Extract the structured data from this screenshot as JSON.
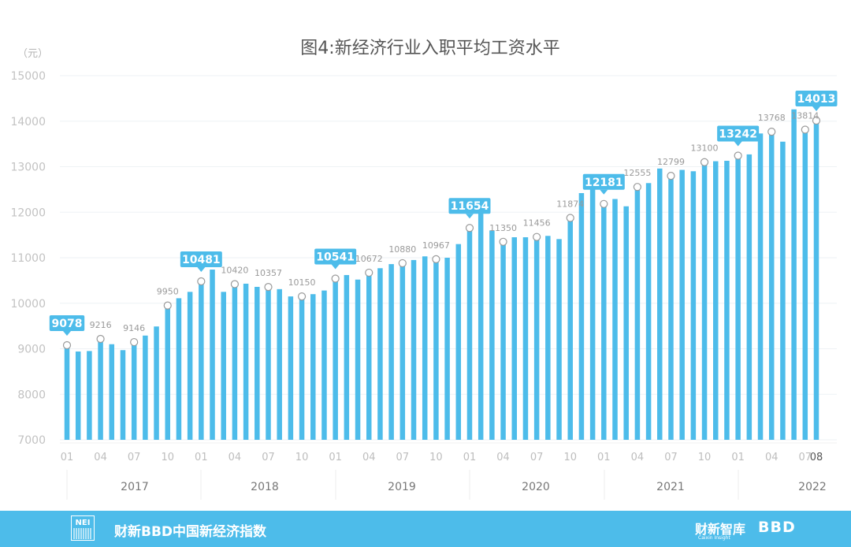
{
  "chart_data": {
    "type": "bar",
    "title": "图4:新经济行业入职平均工资水平",
    "unit_label": "（元）",
    "ylim": [
      7000,
      15000
    ],
    "yticks": [
      7000,
      8000,
      9000,
      10000,
      11000,
      12000,
      13000,
      14000,
      15000
    ],
    "grid": true,
    "bar_color": "#4DBCEA",
    "x_tick_labels": [
      "01",
      "04",
      "07",
      "10",
      "01",
      "04",
      "07",
      "10",
      "01",
      "04",
      "07",
      "10",
      "01",
      "04",
      "07",
      "10",
      "01",
      "04",
      "07",
      "10",
      "01",
      "04",
      "07",
      "08"
    ],
    "years": [
      "2017",
      "2018",
      "2019",
      "2020",
      "2021",
      "2022"
    ],
    "values": [
      9078,
      8940,
      8950,
      9216,
      9100,
      8970,
      9146,
      9290,
      9490,
      9950,
      10110,
      10250,
      10481,
      10740,
      10250,
      10420,
      10430,
      10360,
      10357,
      10310,
      10150,
      10150,
      10200,
      10280,
      10541,
      10620,
      10520,
      10672,
      10770,
      10860,
      10880,
      10950,
      11030,
      10967,
      11000,
      11300,
      11654,
      12220,
      11600,
      11350,
      11450,
      11450,
      11456,
      11480,
      11410,
      11874,
      12420,
      12520,
      12181,
      12290,
      12130,
      12555,
      12640,
      12960,
      12799,
      12930,
      12900,
      13100,
      13120,
      13130,
      13242,
      13270,
      13730,
      13768,
      13550,
      14260,
      13814,
      14013
    ],
    "point_labels": [
      {
        "i": 0,
        "value": "9078",
        "highlight": true
      },
      {
        "i": 3,
        "value": "9216",
        "highlight": false
      },
      {
        "i": 6,
        "value": "9146",
        "highlight": false
      },
      {
        "i": 9,
        "value": "9950",
        "highlight": false
      },
      {
        "i": 12,
        "value": "10481",
        "highlight": true
      },
      {
        "i": 15,
        "value": "10420",
        "highlight": false
      },
      {
        "i": 18,
        "value": "10357",
        "highlight": false
      },
      {
        "i": 21,
        "value": "10150",
        "highlight": false
      },
      {
        "i": 24,
        "value": "10541",
        "highlight": true
      },
      {
        "i": 27,
        "value": "10672",
        "highlight": false
      },
      {
        "i": 30,
        "value": "10880",
        "highlight": false
      },
      {
        "i": 33,
        "value": "10967",
        "highlight": false
      },
      {
        "i": 36,
        "value": "11654",
        "highlight": true
      },
      {
        "i": 39,
        "value": "11350",
        "highlight": false
      },
      {
        "i": 42,
        "value": "11456",
        "highlight": false
      },
      {
        "i": 45,
        "value": "11874",
        "highlight": false
      },
      {
        "i": 48,
        "value": "12181",
        "highlight": true
      },
      {
        "i": 51,
        "value": "12555",
        "highlight": false
      },
      {
        "i": 54,
        "value": "12799",
        "highlight": false
      },
      {
        "i": 57,
        "value": "13100",
        "highlight": false
      },
      {
        "i": 60,
        "value": "13242",
        "highlight": true
      },
      {
        "i": 63,
        "value": "13768",
        "highlight": false
      },
      {
        "i": 66,
        "value": "13814",
        "highlight": false
      },
      {
        "i": 67,
        "value": "14013",
        "highlight": true
      }
    ]
  },
  "footer": {
    "logo_text": "NEI",
    "title": "财新BBD中国新经济指数",
    "brand1": "财新智库",
    "brand1_sub": "Caixin Insight",
    "brand2": "BBD"
  }
}
